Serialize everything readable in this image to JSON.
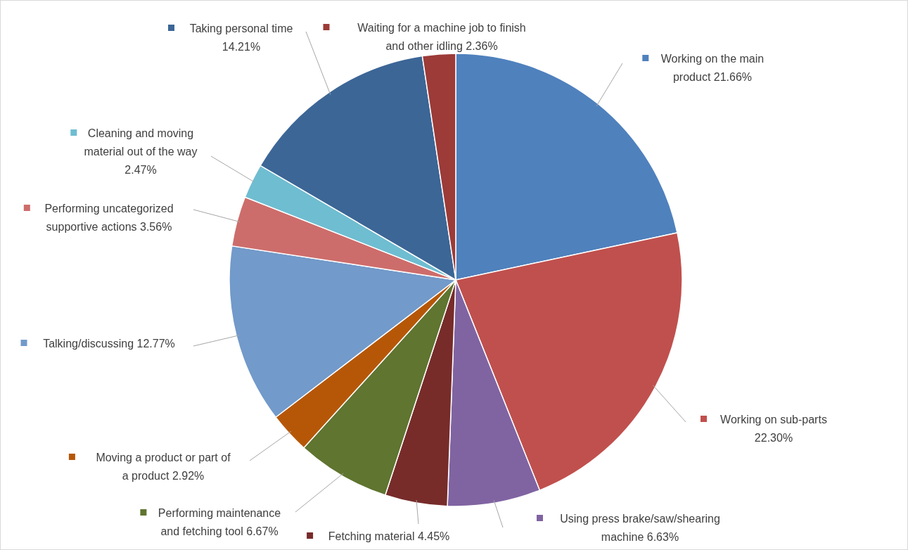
{
  "chart_data": {
    "type": "pie",
    "categories": [
      "Working on the main product",
      "Working on sub-parts",
      "Using press brake/saw/shearing machine",
      "Fetching material",
      "Performing maintenance and fetching tool",
      "Moving a product or part of a product",
      "Talking/discussing",
      "Performing uncategorized supportive actions",
      "Cleaning and moving material out of the way",
      "Taking personal time",
      "Waiting for a machine job to finish and other idling"
    ],
    "values": [
      21.66,
      22.3,
      6.63,
      4.45,
      6.67,
      2.92,
      12.77,
      3.56,
      2.47,
      14.21,
      2.36
    ],
    "value_labels": [
      "21.66%",
      "22.30%",
      "6.63%",
      "4.45%",
      "6.67%",
      "2.92%",
      "12.77%",
      "3.56%",
      "2.47%",
      "14.21%",
      "2.36%"
    ],
    "colors": [
      "#4f81bd",
      "#c0504d",
      "#8064a2",
      "#772c2a",
      "#5f7530",
      "#b65708",
      "#729aca",
      "#cd6d6b",
      "#6fbdd1",
      "#3c6696",
      "#9c3b38"
    ],
    "legend": "left",
    "data_labels": true
  }
}
